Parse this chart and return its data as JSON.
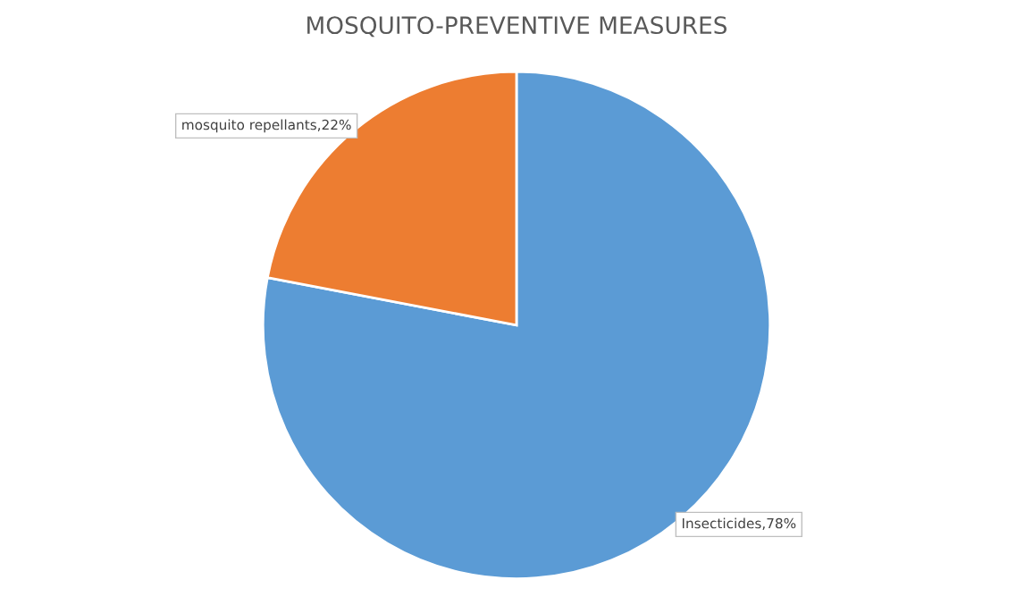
{
  "chart_data": {
    "type": "pie",
    "title": "MOSQUITO-PREVENTIVE MEASURES",
    "categories": [
      "Insecticides",
      "mosquito repellants"
    ],
    "values": [
      78,
      22
    ],
    "colors": [
      "#5b9bd5",
      "#ed7d31"
    ],
    "value_labels": [
      "78%",
      "22%"
    ],
    "legend": false
  }
}
